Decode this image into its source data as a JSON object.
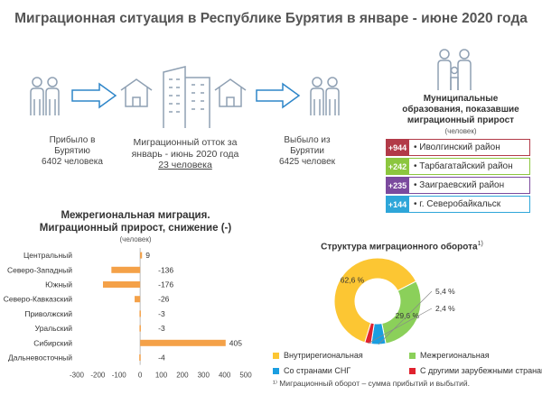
{
  "header": {
    "title": "Миграционная ситуация в Республике Бурятия в январе - июне 2020 года"
  },
  "flow": {
    "arrived": {
      "line1": "Прибыло в",
      "line2": "Бурятию",
      "line3": "6402 человека"
    },
    "outflow": {
      "line1": "Миграционный отток за",
      "line2": "январь - июнь 2020 года",
      "line3": "23 человека"
    },
    "departed": {
      "line1": "Выбыло из",
      "line2": "Бурятии",
      "line3": "6425 человек"
    }
  },
  "municipal": {
    "title_line1": "Муниципальные",
    "title_line2": "образования, показавшие",
    "title_line3": "миграционный прирост",
    "subtitle": "(человек)",
    "items": [
      {
        "value": "+944",
        "name": "Иволгинский район",
        "color": "#b23a48"
      },
      {
        "value": "+242",
        "name": "Тарбагатайский район",
        "color": "#8cc63f"
      },
      {
        "value": "+235",
        "name": "Заиграевский район",
        "color": "#7b4a9e"
      },
      {
        "value": "+144",
        "name": "г. Северобайкальск",
        "color": "#2ea6d9"
      }
    ]
  },
  "chart_data": [
    {
      "type": "bar",
      "orientation": "horizontal",
      "title": "Межрегиональная миграция. Миграционный прирост, снижение (-)",
      "title_line1": "Межрегиональная миграция.",
      "title_line2": "Миграционный прирост, снижение (-)",
      "subtitle": "(человек)",
      "categories": [
        "Центральный",
        "Северо-Западный",
        "Южный",
        "Северо-Кавказский",
        "Приволжский",
        "Уральский",
        "Сибирский",
        "Дальневосточный"
      ],
      "values": [
        9,
        -136,
        -176,
        -26,
        -3,
        -3,
        405,
        -4
      ],
      "labels": [
        "9",
        "-136",
        "-176",
        "-26",
        "-3",
        "-3",
        "405",
        "-4"
      ],
      "xlim": [
        -300,
        500
      ],
      "xticks": [
        -300,
        -200,
        -100,
        0,
        100,
        200,
        300,
        400,
        500
      ],
      "color": "#f4a148"
    },
    {
      "type": "pie",
      "title": "Структура миграционного оборота",
      "title_sup": "1)",
      "slices": [
        {
          "name": "Внутрирегиональная",
          "value": 62.6,
          "label": "62,6 %",
          "color": "#fcc633"
        },
        {
          "name": "Межрегиональная",
          "value": 29.6,
          "label": "29,6 %",
          "color": "#8bd05a"
        },
        {
          "name": "Со странами СНГ",
          "value": 5.4,
          "label": "5,4 %",
          "color": "#1b9ee0"
        },
        {
          "name": "С другими зарубежными странами",
          "value": 2.4,
          "label": "2,4 %",
          "color": "#e0222e"
        }
      ],
      "footnote": "¹⁾ Миграционный оборот – сумма прибытий и выбытий."
    }
  ]
}
